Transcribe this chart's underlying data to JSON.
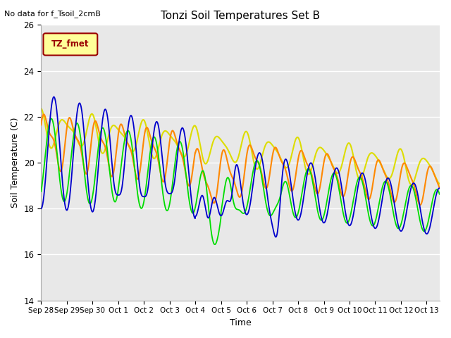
{
  "title": "Tonzi Soil Temperatures Set B",
  "xlabel": "Time",
  "ylabel": "Soil Temperature (C)",
  "no_data_text": "No data for f_Tsoil_2cmB",
  "legend_label_text": "TZ_fmet",
  "ylim": [
    14,
    26
  ],
  "xlim": [
    0,
    15.5
  ],
  "yticks": [
    14,
    16,
    18,
    20,
    22,
    24,
    26
  ],
  "xtick_labels": [
    "Sep 28",
    "Sep 29",
    "Sep 30",
    "Oct 1",
    "Oct 2",
    "Oct 3",
    "Oct 4",
    "Oct 5",
    "Oct 6",
    "Oct 7",
    "Oct 8",
    "Oct 9",
    "Oct 10",
    "Oct 11",
    "Oct 12",
    "Oct 13"
  ],
  "xtick_positions": [
    0,
    1,
    2,
    3,
    4,
    5,
    6,
    7,
    8,
    9,
    10,
    11,
    12,
    13,
    14,
    15
  ],
  "colors": {
    "4cm": "#0000cc",
    "8cm": "#00dd00",
    "16cm": "#ff8800",
    "32cm": "#dddd00"
  },
  "bg_color": "#e8e8e8",
  "legend_box_facecolor": "#ffff99",
  "legend_box_edgecolor": "#990000",
  "legend_text_color": "#990000"
}
